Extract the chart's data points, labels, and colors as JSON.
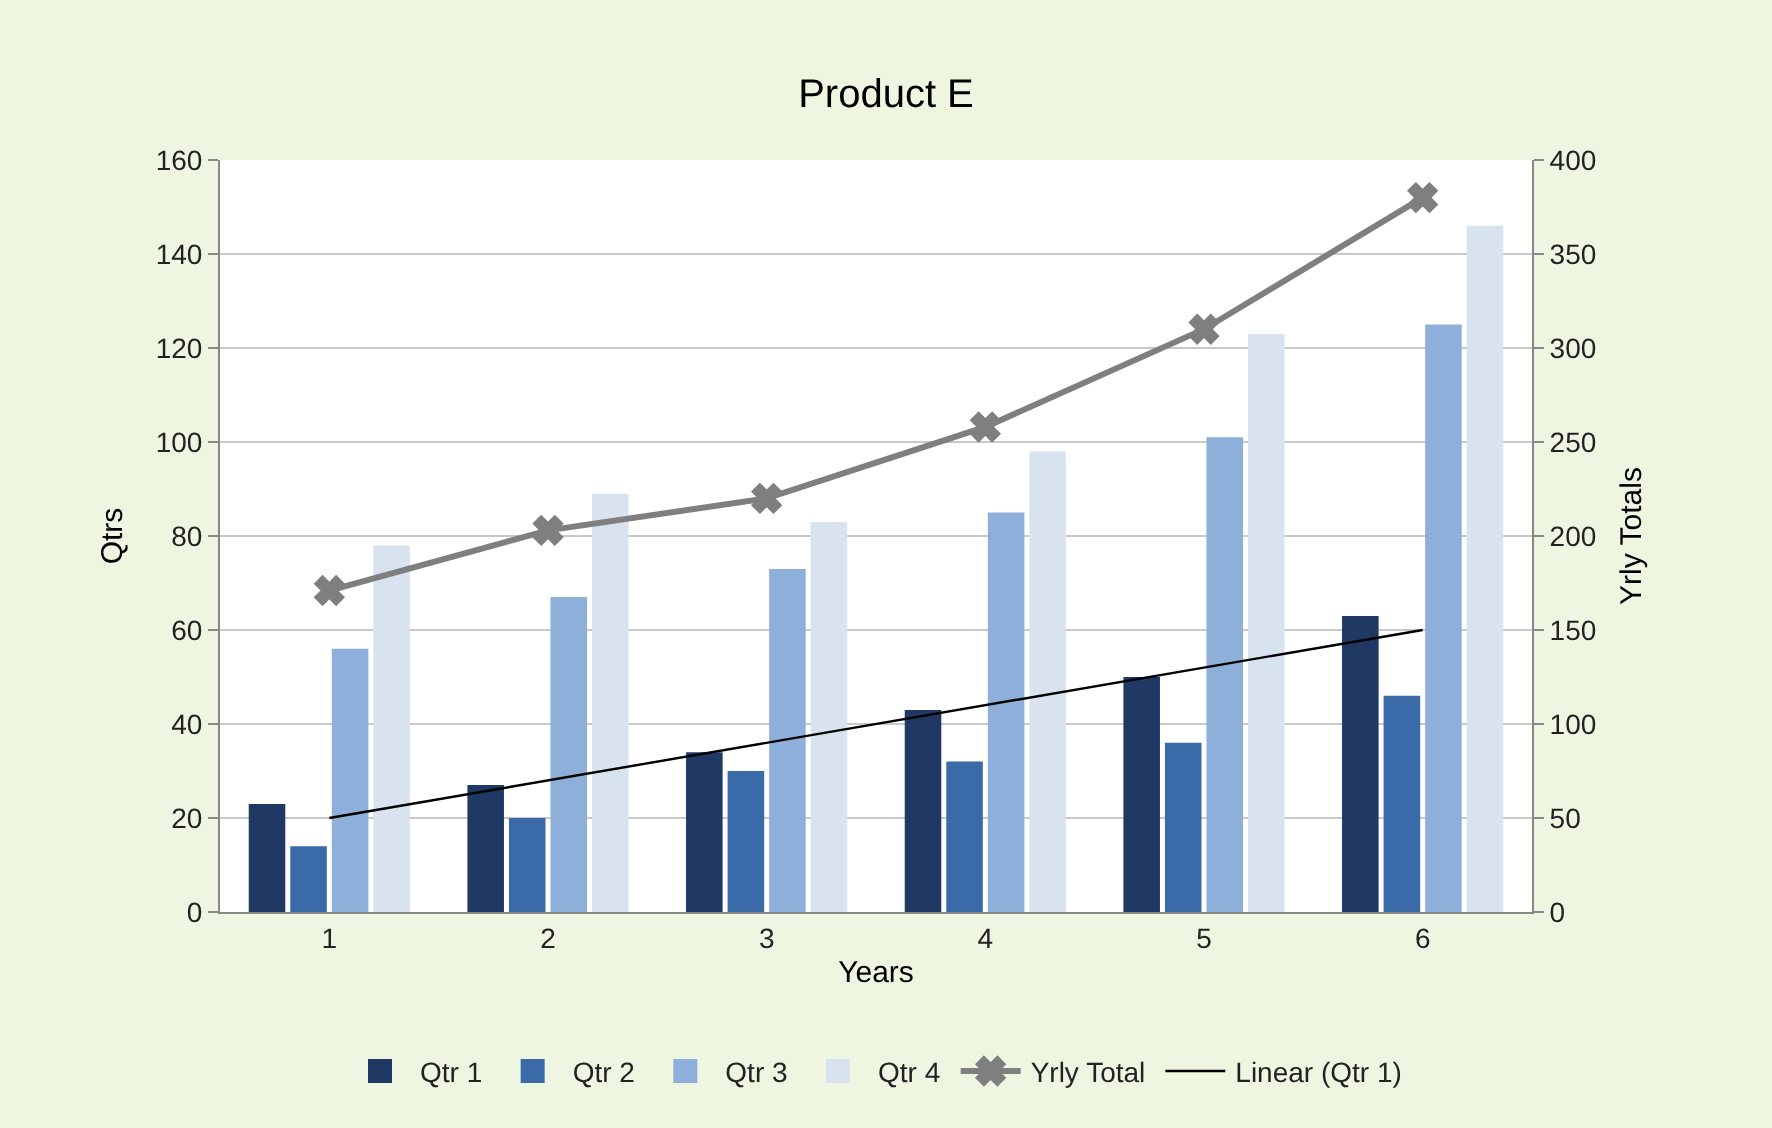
{
  "chart_data": {
    "type": "bar",
    "title": "Product E",
    "xlabel": "Years",
    "ylabel": "Qtrs",
    "y2label": "Yrly Totals",
    "categories": [
      "1",
      "2",
      "3",
      "4",
      "5",
      "6"
    ],
    "ylim": [
      0,
      160
    ],
    "yticks": [
      0,
      20,
      40,
      60,
      80,
      100,
      120,
      140,
      160
    ],
    "y2lim": [
      0,
      400
    ],
    "y2ticks": [
      0,
      50,
      100,
      150,
      200,
      250,
      300,
      350,
      400
    ],
    "grid": "y",
    "legend": "bottom",
    "series": [
      {
        "name": "Qtr 1",
        "color": "#1f3864",
        "values": [
          23,
          27,
          34,
          43,
          50,
          63
        ]
      },
      {
        "name": "Qtr 2",
        "color": "#3a6aa8",
        "values": [
          14,
          20,
          30,
          32,
          36,
          46
        ]
      },
      {
        "name": "Qtr 3",
        "color": "#8eafd9",
        "values": [
          56,
          67,
          73,
          85,
          101,
          125
        ]
      },
      {
        "name": "Qtr 4",
        "color": "#d9e3ef",
        "values": [
          78,
          89,
          83,
          98,
          123,
          146
        ]
      },
      {
        "name": "Yrly Total",
        "type": "line",
        "axis": "y2",
        "color": "#7f7f7f",
        "marker": "cross",
        "line_style": "solid",
        "values": [
          171,
          203,
          220,
          258,
          310,
          380
        ]
      },
      {
        "name": "Linear (Qtr 1)",
        "type": "line",
        "color": "#000000",
        "marker": "none",
        "line_style": "solid",
        "x": [
          "1",
          "6"
        ],
        "values": [
          20,
          60
        ]
      }
    ]
  }
}
